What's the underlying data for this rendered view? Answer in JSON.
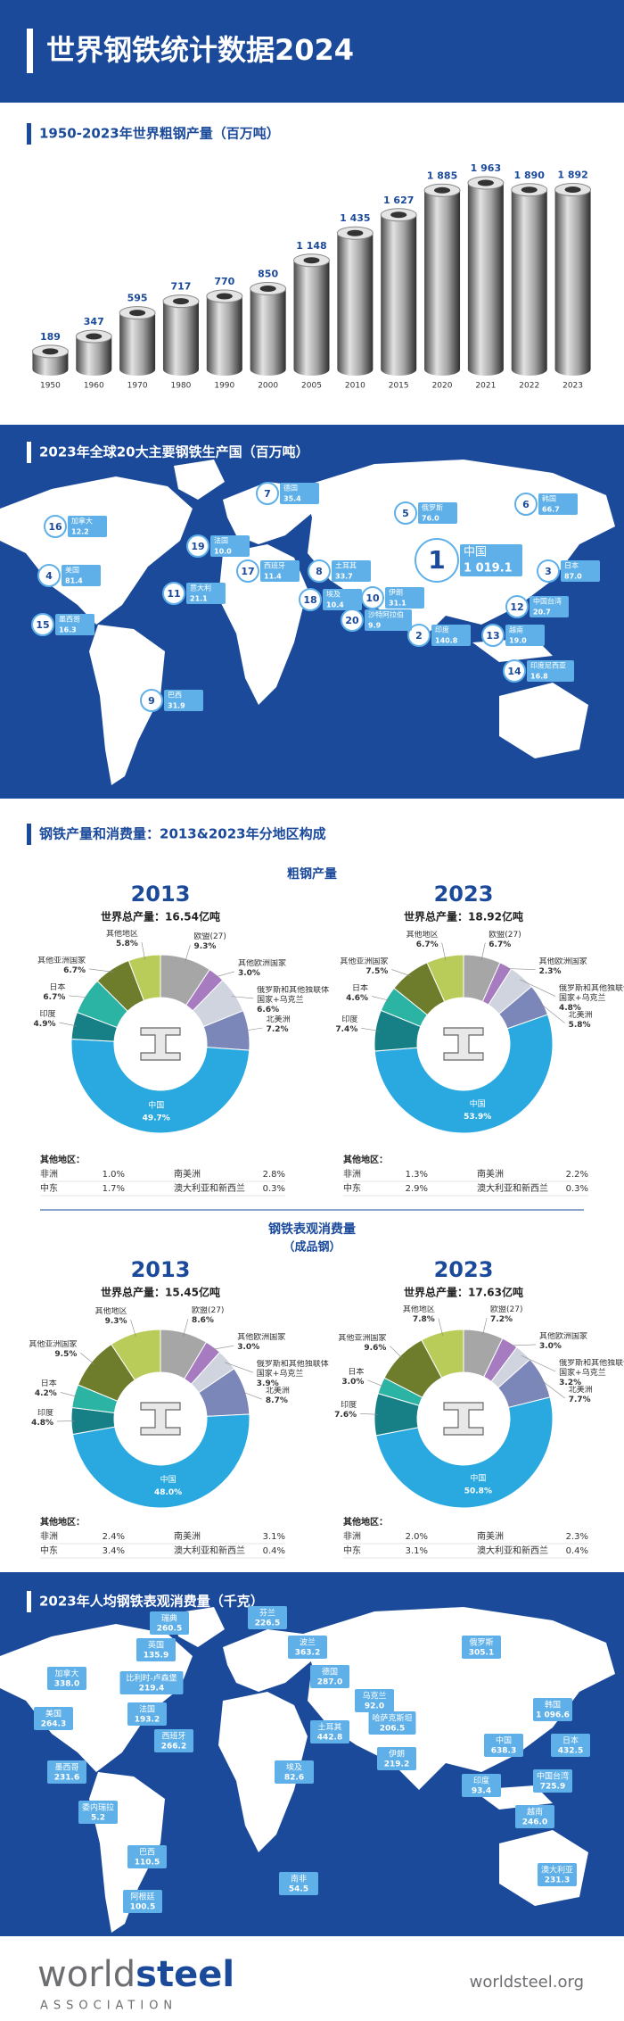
{
  "header": {
    "title": "世界钢铁统计数据2024"
  },
  "chart_data": [
    {
      "type": "bar",
      "title": "1950-2023年世界粗钢产量（百万吨）",
      "categories": [
        "1950",
        "1960",
        "1970",
        "1980",
        "1990",
        "2000",
        "2005",
        "2010",
        "2015",
        "2020",
        "2021",
        "2022",
        "2023"
      ],
      "values": [
        189,
        347,
        595,
        717,
        770,
        850,
        1148,
        1435,
        1627,
        1885,
        1963,
        1890,
        1892
      ],
      "value_labels": [
        "189",
        "347",
        "595",
        "717",
        "770",
        "850",
        "1 148",
        "1 435",
        "1 627",
        "1 885",
        "1 963",
        "1 890",
        "1 892"
      ]
    },
    {
      "type": "donut",
      "title": "2013",
      "subtitle": "世界总产量：16.54亿吨",
      "categories": [
        "欧盟(27)",
        "其他欧洲国家",
        "俄罗斯和其他独联体国家+乌克兰",
        "北美洲",
        "中国",
        "印度",
        "日本",
        "其他亚洲国家",
        "其他地区"
      ],
      "values": [
        9.3,
        3.0,
        6.6,
        7.2,
        49.7,
        4.9,
        6.7,
        6.7,
        5.8
      ],
      "value_labels": [
        "9.3%",
        "3.0%",
        "6.6%",
        "7.2%",
        "49.7%",
        "4.9%",
        "6.7%",
        "6.7%",
        "5.8%"
      ],
      "colors": [
        "#a6a6a6",
        "#a77bc0",
        "#cfd4de",
        "#7c87b9",
        "#2aa9e0",
        "#177f86",
        "#2bb3a3",
        "#6e7d2c",
        "#b9cc5a"
      ]
    },
    {
      "type": "donut",
      "title": "2023",
      "subtitle": "世界总产量：18.92亿吨",
      "categories": [
        "欧盟(27)",
        "其他欧洲国家",
        "俄罗斯和其他独联体国家+乌克兰",
        "北美洲",
        "中国",
        "印度",
        "日本",
        "其他亚洲国家",
        "其他地区"
      ],
      "values": [
        6.7,
        2.3,
        4.8,
        5.8,
        53.9,
        7.4,
        4.6,
        7.5,
        6.7
      ],
      "value_labels": [
        "6.7%",
        "2.3%",
        "4.8%",
        "5.8%",
        "53.9%",
        "7.4%",
        "4.6%",
        "7.5%",
        "6.7%"
      ],
      "colors": [
        "#a6a6a6",
        "#a77bc0",
        "#cfd4de",
        "#7c87b9",
        "#2aa9e0",
        "#177f86",
        "#2bb3a3",
        "#6e7d2c",
        "#b9cc5a"
      ]
    },
    {
      "type": "donut",
      "title": "2013",
      "subtitle": "世界总产量：15.45亿吨",
      "categories": [
        "欧盟(27)",
        "其他欧洲国家",
        "俄罗斯和其他独联体国家+乌克兰",
        "北美洲",
        "中国",
        "印度",
        "日本",
        "其他亚洲国家",
        "其他地区"
      ],
      "values": [
        8.6,
        3.0,
        3.9,
        8.7,
        48.0,
        4.8,
        4.2,
        9.5,
        9.3
      ],
      "value_labels": [
        "8.6%",
        "3.0%",
        "3.9%",
        "8.7%",
        "48.0%",
        "4.8%",
        "4.2%",
        "9.5%",
        "9.3%"
      ],
      "colors": [
        "#a6a6a6",
        "#a77bc0",
        "#cfd4de",
        "#7c87b9",
        "#2aa9e0",
        "#177f86",
        "#2bb3a3",
        "#6e7d2c",
        "#b9cc5a"
      ]
    },
    {
      "type": "donut",
      "title": "2023",
      "subtitle": "世界总产量：17.63亿吨",
      "categories": [
        "欧盟(27)",
        "其他欧洲国家",
        "俄罗斯和其他独联体国家+乌克兰",
        "北美洲",
        "中国",
        "印度",
        "日本",
        "其他亚洲国家",
        "其他地区"
      ],
      "values": [
        7.2,
        3.0,
        3.2,
        7.7,
        50.8,
        7.6,
        3.0,
        9.6,
        7.8
      ],
      "value_labels": [
        "7.2%",
        "3.0%",
        "3.2%",
        "7.7%",
        "50.8%",
        "7.6%",
        "3.0%",
        "9.6%",
        "7.8%"
      ],
      "colors": [
        "#a6a6a6",
        "#a77bc0",
        "#cfd4de",
        "#7c87b9",
        "#2aa9e0",
        "#177f86",
        "#2bb3a3",
        "#6e7d2c",
        "#b9cc5a"
      ]
    }
  ],
  "production_map": {
    "title": "2023年全球20大主要钢铁生产国（百万吨）",
    "items": [
      {
        "rank": 1,
        "name": "中国",
        "value": "1 019.1"
      },
      {
        "rank": 2,
        "name": "印度",
        "value": "140.8"
      },
      {
        "rank": 3,
        "name": "日本",
        "value": "87.0"
      },
      {
        "rank": 4,
        "name": "美国",
        "value": "81.4"
      },
      {
        "rank": 5,
        "name": "俄罗斯",
        "value": "76.0"
      },
      {
        "rank": 6,
        "name": "韩国",
        "value": "66.7"
      },
      {
        "rank": 7,
        "name": "德国",
        "value": "35.4"
      },
      {
        "rank": 8,
        "name": "土耳其",
        "value": "33.7"
      },
      {
        "rank": 9,
        "name": "巴西",
        "value": "31.9"
      },
      {
        "rank": 10,
        "name": "伊朗",
        "value": "31.1"
      },
      {
        "rank": 11,
        "name": "意大利",
        "value": "21.1"
      },
      {
        "rank": 12,
        "name": "中国台湾",
        "value": "20.7"
      },
      {
        "rank": 13,
        "name": "越南",
        "value": "19.0"
      },
      {
        "rank": 14,
        "name": "印度尼西亚",
        "value": "16.8"
      },
      {
        "rank": 15,
        "name": "墨西哥",
        "value": "16.3"
      },
      {
        "rank": 16,
        "name": "加拿大",
        "value": "12.2"
      },
      {
        "rank": 17,
        "name": "西班牙",
        "value": "11.4"
      },
      {
        "rank": 18,
        "name": "埃及",
        "value": "10.4"
      },
      {
        "rank": 19,
        "name": "法国",
        "value": "10.0"
      },
      {
        "rank": 20,
        "name": "沙特阿拉伯",
        "value": "9.9"
      }
    ]
  },
  "composition": {
    "title": "钢铁产量和消费量：2013&2023年分地区构成",
    "crude_title": "粗钢产量",
    "consumption_title": "钢铁表观消费量",
    "consumption_subtitle": "（成品钢）"
  },
  "other_regions": [
    {
      "title": "其他地区：",
      "items": [
        {
          "name": "非洲",
          "value": "1.0%"
        },
        {
          "name": "南美洲",
          "value": "2.8%"
        },
        {
          "name": "中东",
          "value": "1.7%"
        },
        {
          "name": "澳大利亚和新西兰",
          "value": "0.3%"
        }
      ]
    },
    {
      "title": "其他地区：",
      "items": [
        {
          "name": "非洲",
          "value": "1.3%"
        },
        {
          "name": "南美洲",
          "value": "2.2%"
        },
        {
          "name": "中东",
          "value": "2.9%"
        },
        {
          "name": "澳大利亚和新西兰",
          "value": "0.3%"
        }
      ]
    },
    {
      "title": "其他地区：",
      "items": [
        {
          "name": "非洲",
          "value": "2.4%"
        },
        {
          "name": "南美洲",
          "value": "3.1%"
        },
        {
          "name": "中东",
          "value": "3.4%"
        },
        {
          "name": "澳大利亚和新西兰",
          "value": "0.4%"
        }
      ]
    },
    {
      "title": "其他地区：",
      "items": [
        {
          "name": "非洲",
          "value": "2.0%"
        },
        {
          "name": "南美洲",
          "value": "2.3%"
        },
        {
          "name": "中东",
          "value": "3.1%"
        },
        {
          "name": "澳大利亚和新西兰",
          "value": "0.4%"
        }
      ]
    }
  ],
  "per_capita_map": {
    "title": "2023年人均钢铁表观消费量（千克）",
    "items": [
      {
        "name": "瑞典",
        "value": "260.5"
      },
      {
        "name": "芬兰",
        "value": "226.5"
      },
      {
        "name": "英国",
        "value": "135.9"
      },
      {
        "name": "波兰",
        "value": "363.2"
      },
      {
        "name": "加拿大",
        "value": "338.0"
      },
      {
        "name": "比利时-卢森堡",
        "value": "219.4"
      },
      {
        "name": "德国",
        "value": "287.0"
      },
      {
        "name": "俄罗斯",
        "value": "305.1"
      },
      {
        "name": "乌克兰",
        "value": "92.0"
      },
      {
        "name": "美国",
        "value": "264.3"
      },
      {
        "name": "法国",
        "value": "193.2"
      },
      {
        "name": "西班牙",
        "value": "266.2"
      },
      {
        "name": "土耳其",
        "value": "442.8"
      },
      {
        "name": "哈萨克斯坦",
        "value": "206.5"
      },
      {
        "name": "韩国",
        "value": "1 096.6"
      },
      {
        "name": "日本",
        "value": "432.5"
      },
      {
        "name": "中国",
        "value": "638.3"
      },
      {
        "name": "伊朗",
        "value": "219.2"
      },
      {
        "name": "墨西哥",
        "value": "231.6"
      },
      {
        "name": "埃及",
        "value": "82.6"
      },
      {
        "name": "印度",
        "value": "93.4"
      },
      {
        "name": "中国台湾",
        "value": "725.9"
      },
      {
        "name": "委内瑞拉",
        "value": "5.2"
      },
      {
        "name": "越南",
        "value": "246.0"
      },
      {
        "name": "巴西",
        "value": "110.5"
      },
      {
        "name": "南非",
        "value": "54.5"
      },
      {
        "name": "阿根廷",
        "value": "100.5"
      },
      {
        "name": "澳大利亚",
        "value": "231.3"
      }
    ]
  },
  "footer": {
    "logo_a": "world",
    "logo_b": "steel",
    "logo_sub": "ASSOCIATION",
    "url": "worldsteel.org"
  }
}
